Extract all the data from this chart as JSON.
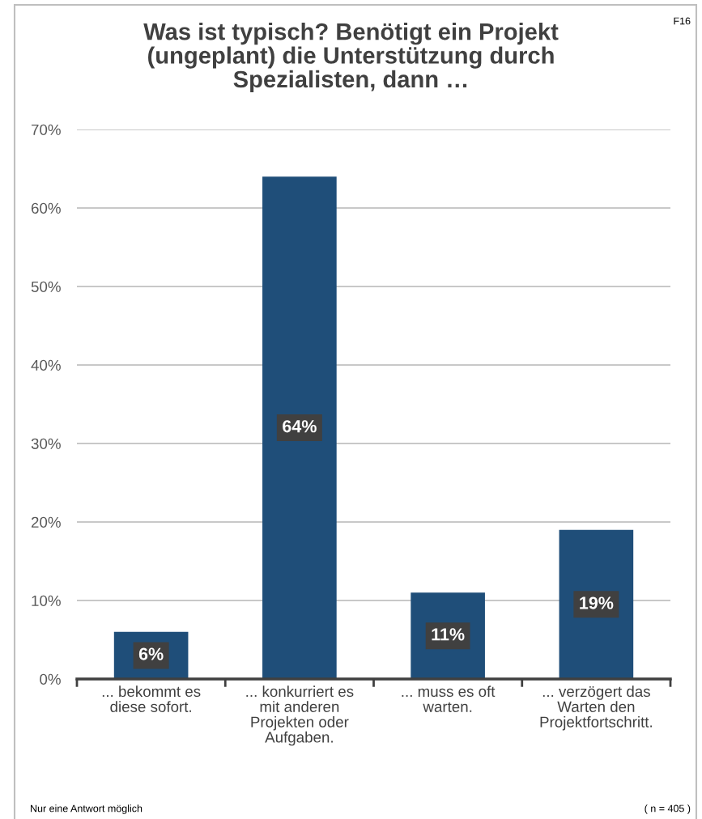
{
  "chart_data": {
    "type": "bar",
    "title": "Was ist typisch? Benötigt ein Projekt\n(ungeplant) die Unterstützung durch\nSpezialisten, dann …",
    "categories": [
      "... bekommt es\ndiese sofort.",
      "... konkurriert es\nmit anderen\nProjekten oder\nAufgaben.",
      "... muss es oft\nwarten.",
      "... verzögert das\nWarten den\nProjektfortschritt."
    ],
    "values": [
      6,
      64,
      11,
      19
    ],
    "color": "#1f4e79",
    "value_labels": [
      "6%",
      "64%",
      "11%",
      "19%"
    ],
    "ylim": [
      0,
      70
    ],
    "yticks": [
      {
        "value": 0,
        "label": "0%"
      },
      {
        "value": 10,
        "label": "10%"
      },
      {
        "value": 20,
        "label": "20%"
      },
      {
        "value": 30,
        "label": "30%"
      },
      {
        "value": 40,
        "label": "40%"
      },
      {
        "value": 50,
        "label": "50%"
      },
      {
        "value": 60,
        "label": "60%"
      },
      {
        "value": 70,
        "label": "70%"
      }
    ],
    "grid": "y",
    "legend": false,
    "annotations": [
      "F16",
      "Nur eine Antwort möglich",
      "( n = 405 )"
    ]
  }
}
